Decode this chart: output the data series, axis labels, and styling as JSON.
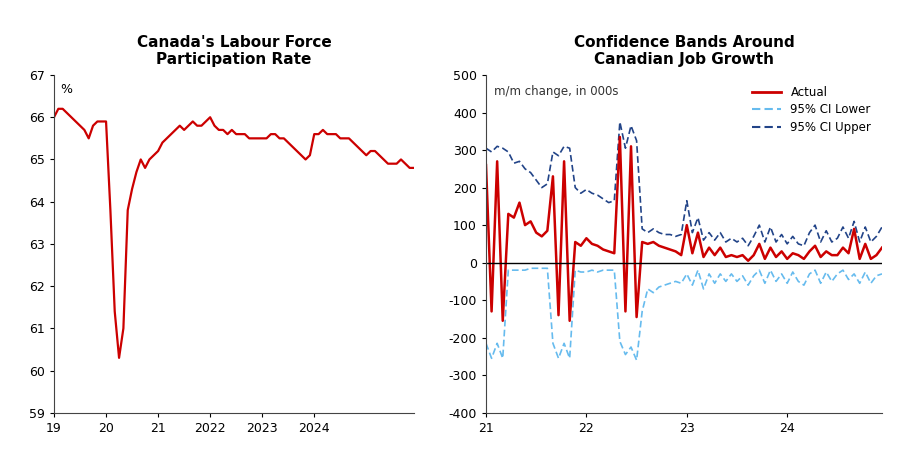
{
  "left_title": "Canada's Labour Force\nParticipation Rate",
  "left_ylabel": "%",
  "left_ylim": [
    59,
    67
  ],
  "left_yticks": [
    59,
    60,
    61,
    62,
    63,
    64,
    65,
    66,
    67
  ],
  "left_line_color": "#cc0000",
  "left_data": [
    66.0,
    66.2,
    66.2,
    66.1,
    66.0,
    65.9,
    65.8,
    65.7,
    65.5,
    65.8,
    65.9,
    65.9,
    65.9,
    63.8,
    61.4,
    60.3,
    61.0,
    63.8,
    64.3,
    64.7,
    65.0,
    64.8,
    65.0,
    65.1,
    65.2,
    65.4,
    65.5,
    65.6,
    65.7,
    65.8,
    65.7,
    65.8,
    65.9,
    65.8,
    65.8,
    65.9,
    66.0,
    65.8,
    65.7,
    65.7,
    65.6,
    65.7,
    65.6,
    65.6,
    65.6,
    65.5,
    65.5,
    65.5,
    65.5,
    65.5,
    65.6,
    65.6,
    65.5,
    65.5,
    65.4,
    65.3,
    65.2,
    65.1,
    65.0,
    65.1,
    65.6,
    65.6,
    65.7,
    65.6,
    65.6,
    65.6,
    65.5,
    65.5,
    65.5,
    65.4,
    65.3,
    65.2,
    65.1,
    65.2,
    65.2,
    65.1,
    65.0,
    64.9,
    64.9,
    64.9,
    65.0,
    64.9,
    64.8,
    64.8
  ],
  "right_title": "Confidence Bands Around\nCanadian Job Growth",
  "right_ylabel_text": "m/m change, in 000s",
  "right_ylim": [
    -400,
    500
  ],
  "right_yticks": [
    -400,
    -300,
    -200,
    -100,
    0,
    100,
    200,
    300,
    400,
    500
  ],
  "actual_color": "#cc0000",
  "ci_lower_color": "#66bbee",
  "ci_upper_color": "#224488",
  "actual": [
    260,
    -130,
    270,
    -155,
    130,
    120,
    160,
    100,
    110,
    80,
    70,
    85,
    230,
    -140,
    270,
    -155,
    55,
    45,
    65,
    50,
    45,
    35,
    30,
    25,
    335,
    -130,
    310,
    -145,
    55,
    50,
    55,
    45,
    40,
    35,
    30,
    20,
    100,
    25,
    80,
    15,
    40,
    20,
    40,
    15,
    20,
    15,
    20,
    5,
    20,
    50,
    10,
    40,
    15,
    30,
    10,
    25,
    20,
    10,
    30,
    45,
    15,
    30,
    20,
    20,
    40,
    25,
    90,
    10,
    50,
    10,
    20,
    40
  ],
  "ci_lower": [
    -215,
    -255,
    -215,
    -255,
    -20,
    -20,
    -20,
    -20,
    -15,
    -15,
    -15,
    -15,
    -215,
    -255,
    -215,
    -255,
    -20,
    -25,
    -25,
    -20,
    -25,
    -20,
    -20,
    -20,
    -210,
    -245,
    -225,
    -260,
    -130,
    -70,
    -80,
    -65,
    -60,
    -55,
    -50,
    -55,
    -30,
    -60,
    -20,
    -70,
    -30,
    -55,
    -30,
    -50,
    -30,
    -50,
    -35,
    -60,
    -35,
    -20,
    -55,
    -20,
    -50,
    -30,
    -55,
    -25,
    -50,
    -60,
    -30,
    -20,
    -55,
    -25,
    -50,
    -30,
    -20,
    -45,
    -30,
    -55,
    -25,
    -55,
    -35,
    -30
  ],
  "ci_upper": [
    305,
    295,
    310,
    305,
    295,
    265,
    270,
    250,
    240,
    220,
    200,
    210,
    295,
    285,
    310,
    305,
    200,
    185,
    195,
    185,
    180,
    170,
    160,
    165,
    375,
    305,
    365,
    325,
    90,
    80,
    90,
    80,
    75,
    75,
    70,
    75,
    165,
    80,
    120,
    60,
    80,
    60,
    80,
    55,
    65,
    55,
    65,
    45,
    70,
    100,
    55,
    95,
    55,
    75,
    50,
    70,
    50,
    45,
    80,
    100,
    55,
    85,
    55,
    65,
    95,
    65,
    110,
    55,
    95,
    55,
    70,
    95
  ],
  "bg_color": "#ffffff"
}
